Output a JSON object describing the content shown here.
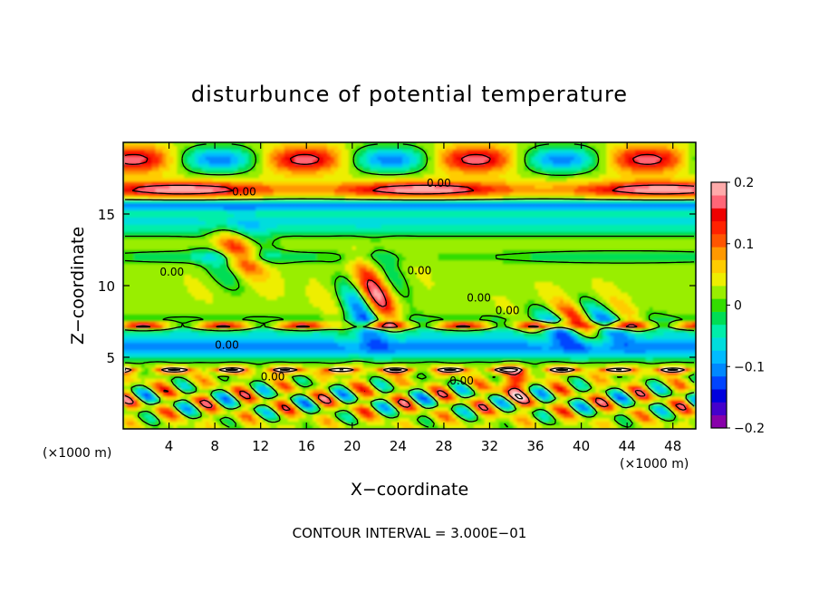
{
  "chart_data": {
    "type": "heatmap",
    "title": "disturbunce of potential temperature",
    "xlabel": "X−coordinate",
    "ylabel": "Z−coordinate",
    "x_unit": "(×1000 m)",
    "y_unit": "(×1000 m)",
    "xlim": [
      0,
      50
    ],
    "ylim": [
      0,
      20
    ],
    "xticks": [
      "4",
      "8",
      "12",
      "16",
      "20",
      "24",
      "28",
      "32",
      "36",
      "40",
      "44",
      "48"
    ],
    "yticks": [
      "5",
      "10",
      "15"
    ],
    "colorbar": {
      "min": -0.2,
      "max": 0.2,
      "ticks": [
        "0.2",
        "0.1",
        "0",
        "−0.1",
        "−0.2"
      ],
      "colors": [
        "#8800aa",
        "#4400cc",
        "#0000dd",
        "#0044ff",
        "#0088ff",
        "#00bbff",
        "#00dddd",
        "#00eeaa",
        "#00dd55",
        "#33dd00",
        "#99ee00",
        "#eeee00",
        "#ffcc00",
        "#ff9900",
        "#ff5500",
        "#ff2200",
        "#ee0000",
        "#ff6677",
        "#ffaaaa"
      ]
    },
    "contour_labels": [
      "0.00",
      "0.00",
      "0.00",
      "0.00",
      "0.00",
      "0.00",
      "0.00",
      "0.00",
      "0.00"
    ],
    "footer": "CONTOUR INTERVAL = 3.000E−01"
  }
}
